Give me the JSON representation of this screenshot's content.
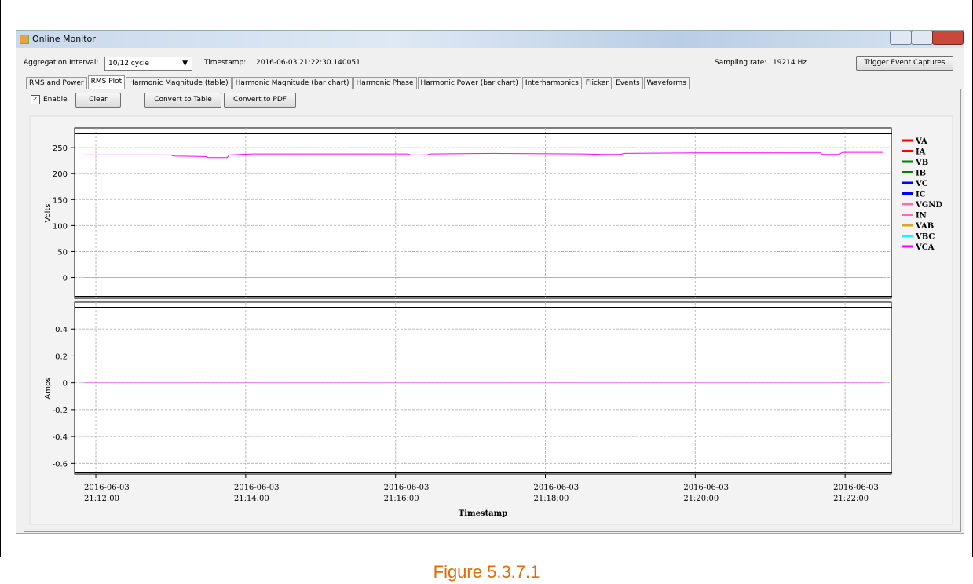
{
  "window": {
    "title": "Online Monitor"
  },
  "toolbar": {
    "aggregation_label": "Aggregation Interval:",
    "aggregation_value": "10/12 cycle",
    "timestamp_label": "Timestamp:",
    "timestamp_value": "2016-06-03 21:22:30.140051",
    "sampling_label": "Sampling rate:",
    "sampling_value": "19214 Hz",
    "trigger_button": "Trigger Event Captures"
  },
  "tabs": [
    "RMS and Power",
    "RMS Plot",
    "Harmonic Magnitude (table)",
    "Harmonic Magnitude (bar chart)",
    "Harmonic Phase",
    "Harmonic Power (bar chart)",
    "Interharmonics",
    "Flicker",
    "Events",
    "Waveforms"
  ],
  "active_tab": 1,
  "controls": {
    "enable": "Enable",
    "clear": "Clear",
    "to_table": "Convert to Table",
    "to_pdf": "Convert to PDF"
  },
  "chart_data": [
    {
      "type": "line",
      "ylabel": "Volts",
      "ylim": [
        -40,
        288
      ],
      "yticks": [
        0,
        50,
        100,
        150,
        200,
        250
      ],
      "grid": true,
      "xlim": [
        "2016-06-03 21:11:43",
        "2016-06-03 21:22:37"
      ],
      "legend_entries": [
        {
          "name": "VA",
          "color": "#ff0000"
        },
        {
          "name": "IA",
          "color": "#ff0000"
        },
        {
          "name": "VB",
          "color": "#008000"
        },
        {
          "name": "IB",
          "color": "#008000"
        },
        {
          "name": "VC",
          "color": "#0000ff"
        },
        {
          "name": "IC",
          "color": "#0000ff"
        },
        {
          "name": "VGND",
          "color": "#ff69b4"
        },
        {
          "name": "IN",
          "color": "#ff69b4"
        },
        {
          "name": "VAB",
          "color": "#daa520"
        },
        {
          "name": "VBC",
          "color": "#00ffff"
        },
        {
          "name": "VCA",
          "color": "#ff00ff"
        }
      ],
      "series": [
        {
          "name": "VBC",
          "color": "#00ffff",
          "x": [
            "2016-06-03 21:11:51",
            "2016-06-03 21:22:30"
          ],
          "values": [
            0,
            0
          ]
        },
        {
          "name": "VCA",
          "color": "#ff00ff",
          "x": [
            "2016-06-03 21:11:51",
            "2016-06-03 21:13:00",
            "2016-06-03 21:13:02",
            "2016-06-03 21:13:28",
            "2016-06-03 21:13:30",
            "2016-06-03 21:13:45",
            "2016-06-03 21:13:47",
            "2016-06-03 21:14:05",
            "2016-06-03 21:16:10",
            "2016-06-03 21:16:12",
            "2016-06-03 21:16:25",
            "2016-06-03 21:16:28",
            "2016-06-03 21:17:20",
            "2016-06-03 21:18:30",
            "2016-06-03 21:18:45",
            "2016-06-03 21:19:00",
            "2016-06-03 21:19:03",
            "2016-06-03 21:20:00",
            "2016-06-03 21:21:40",
            "2016-06-03 21:21:42",
            "2016-06-03 21:21:55",
            "2016-06-03 21:21:58",
            "2016-06-03 21:22:30"
          ],
          "values": [
            236,
            236,
            234,
            233,
            231,
            231,
            236,
            238,
            238,
            236,
            236,
            238,
            239,
            238,
            237,
            237,
            239,
            240,
            240,
            237,
            237,
            241,
            241
          ]
        }
      ]
    },
    {
      "type": "line",
      "ylabel": "Amps",
      "xlabel": "Timestamp",
      "ylim": [
        -0.68,
        0.6
      ],
      "yticks": [
        -0.6,
        -0.4,
        -0.2,
        0,
        0.2,
        0.4
      ],
      "grid": true,
      "xlim": [
        "2016-06-03 21:11:43",
        "2016-06-03 21:22:37"
      ],
      "xticks": [
        "2016-06-03 21:12:00",
        "2016-06-03 21:14:00",
        "2016-06-03 21:16:00",
        "2016-06-03 21:18:00",
        "2016-06-03 21:20:00",
        "2016-06-03 21:22:00"
      ],
      "series": [
        {
          "name": "IN",
          "color": "#ee82ee",
          "x": [
            "2016-06-03 21:11:51",
            "2016-06-03 21:22:30"
          ],
          "values": [
            0,
            0
          ]
        }
      ]
    }
  ],
  "caption": "Figure 5.3.7.1"
}
